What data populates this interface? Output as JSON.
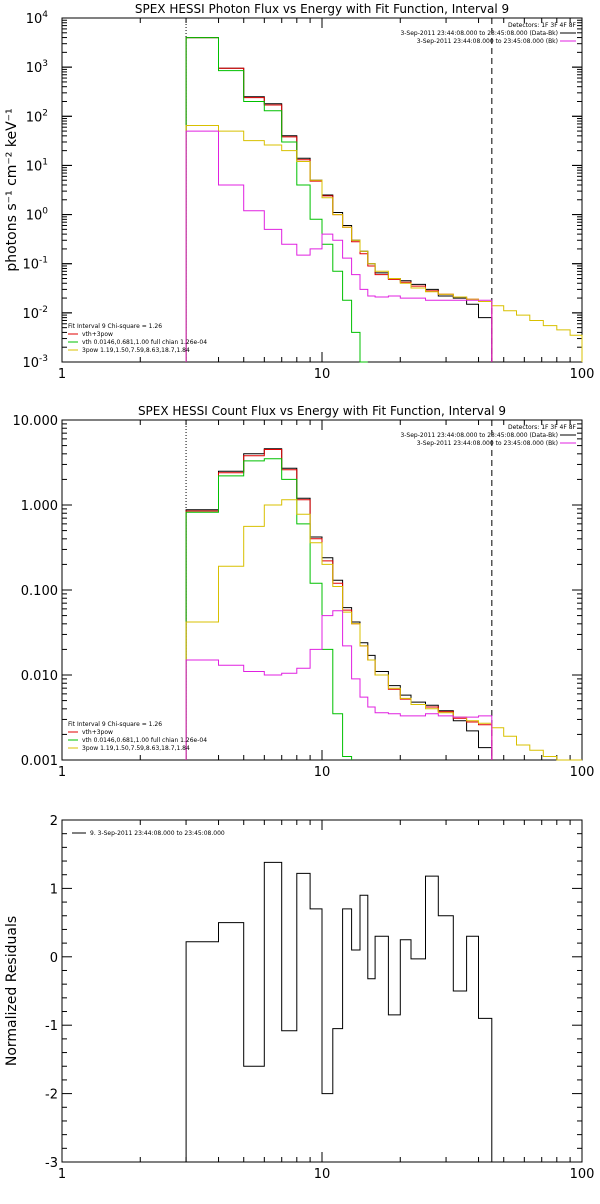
{
  "chart_data": [
    {
      "type": "line",
      "title": "SPEX HESSI Photon Flux vs Energy with Fit Function, Interval 9",
      "ylabel": "photons s⁻¹ cm⁻² keV⁻¹",
      "xlabel": "",
      "xscale": "log",
      "yscale": "log",
      "xlim": [
        1,
        100
      ],
      "ylim": [
        0.001,
        10000
      ],
      "xticks": [
        {
          "v": 1,
          "label": "1"
        },
        {
          "v": 10,
          "label": "10"
        },
        {
          "v": 100,
          "label": "100"
        }
      ],
      "yticks": [
        {
          "v": 0.001,
          "base": "10",
          "exp": "-3"
        },
        {
          "v": 0.01,
          "base": "10",
          "exp": "-2"
        },
        {
          "v": 0.1,
          "base": "10",
          "exp": "-1"
        },
        {
          "v": 1,
          "base": "10",
          "exp": "0"
        },
        {
          "v": 10,
          "base": "10",
          "exp": "1"
        },
        {
          "v": 100,
          "base": "10",
          "exp": "2"
        },
        {
          "v": 1000,
          "base": "10",
          "exp": "3"
        },
        {
          "v": 10000,
          "base": "10",
          "exp": "4"
        }
      ],
      "legend_right": [
        {
          "text": "Detectors: 1F 3F 4F 8F",
          "color": "#000000",
          "line": false
        },
        {
          "text": "3-Sep-2011 23:44:08.000 to 23:45:08.000 (Data-Bk)",
          "color": "#000000",
          "line": true
        },
        {
          "text": "3-Sep-2011 23:44:08.000 to 23:45:08.000 (Bk)",
          "color": "#e020e0",
          "line": true
        }
      ],
      "legend_left": [
        {
          "text": "Fit Interval  9    Chi-square = 1.26",
          "color": "#000000",
          "line": false
        },
        {
          "text": "vth+3pow",
          "color": "#e00000",
          "line": true
        },
        {
          "text": "vth 0.0146,0.681,1.00  full chian 1.26e-04",
          "color": "#00c000",
          "line": true
        },
        {
          "text": "3pow 1.19,1.50,7.59,8.63,18.7,1.84",
          "color": "#d8c000",
          "line": true
        }
      ],
      "vlines": [
        {
          "x": 3,
          "style": "dotted"
        },
        {
          "x": 45,
          "style": "dashed"
        }
      ],
      "series": [
        {
          "color": "#000000",
          "edges": [
            3,
            4,
            5,
            6,
            7,
            8,
            9,
            10,
            11,
            12,
            13,
            14,
            15,
            16,
            18,
            20,
            22,
            25,
            28,
            32,
            36,
            40,
            45
          ],
          "values": [
            4000,
            950,
            250,
            180,
            40,
            14,
            5,
            2.5,
            1.1,
            0.6,
            0.3,
            0.18,
            0.1,
            0.065,
            0.05,
            0.045,
            0.038,
            0.03,
            0.022,
            0.02,
            0.015,
            0.008
          ]
        },
        {
          "color": "#e00000",
          "edges": [
            3,
            4,
            5,
            6,
            7,
            8,
            9,
            10,
            11,
            12,
            13,
            14,
            15,
            16,
            18,
            20,
            22,
            25,
            28,
            32,
            36,
            40,
            45
          ],
          "values": [
            4000,
            950,
            240,
            170,
            38,
            13,
            4.8,
            2.4,
            1.0,
            0.55,
            0.28,
            0.16,
            0.09,
            0.06,
            0.048,
            0.042,
            0.035,
            0.028,
            0.024,
            0.021,
            0.019,
            0.017
          ]
        },
        {
          "color": "#00c000",
          "edges": [
            3,
            4,
            5,
            6,
            7,
            8,
            9,
            10,
            11,
            12,
            13,
            14,
            15
          ],
          "values": [
            4000,
            850,
            200,
            130,
            30,
            4,
            0.8,
            0.25,
            0.07,
            0.018,
            0.004,
            0.0005
          ]
        },
        {
          "color": "#d8c000",
          "edges": [
            3,
            4,
            5,
            6,
            7,
            8,
            9,
            10,
            11,
            12,
            13,
            14,
            15,
            16,
            18,
            20,
            22,
            25,
            28,
            32,
            36,
            40,
            45,
            50,
            56,
            63,
            71,
            80,
            90,
            100
          ],
          "values": [
            65,
            50,
            32,
            26,
            20,
            12,
            5,
            2.2,
            1.0,
            0.55,
            0.3,
            0.18,
            0.1,
            0.07,
            0.05,
            0.04,
            0.032,
            0.027,
            0.024,
            0.021,
            0.019,
            0.017,
            0.014,
            0.011,
            0.009,
            0.007,
            0.0055,
            0.0045,
            0.0035
          ]
        },
        {
          "color": "#e020e0",
          "edges": [
            3,
            4,
            5,
            6,
            7,
            8,
            9,
            10,
            11,
            12,
            13,
            14,
            15,
            16,
            18,
            20,
            22,
            25,
            28,
            32,
            36,
            40,
            45
          ],
          "values": [
            50,
            4,
            1.2,
            0.5,
            0.25,
            0.15,
            0.2,
            0.4,
            0.3,
            0.13,
            0.06,
            0.03,
            0.022,
            0.021,
            0.022,
            0.02,
            0.02,
            0.018,
            0.018,
            0.018,
            0.018,
            0.018
          ]
        }
      ]
    },
    {
      "type": "line",
      "title": "SPEX HESSI Count Flux vs Energy with Fit Function, Interval 9",
      "ylabel": "",
      "xlabel": "",
      "xscale": "log",
      "yscale": "log",
      "xlim": [
        1,
        100
      ],
      "ylim": [
        0.001,
        10
      ],
      "xticks": [
        {
          "v": 1,
          "label": "1"
        },
        {
          "v": 10,
          "label": "10"
        },
        {
          "v": 100,
          "label": "100"
        }
      ],
      "yticks": [
        {
          "v": 0.001,
          "label": "0.001"
        },
        {
          "v": 0.01,
          "label": "0.010"
        },
        {
          "v": 0.1,
          "label": "0.100"
        },
        {
          "v": 1,
          "label": "1.000"
        },
        {
          "v": 10,
          "label": "10.000"
        }
      ],
      "legend_right": [
        {
          "text": "Detectors: 1F 3F 4F 8F",
          "color": "#000000",
          "line": false
        },
        {
          "text": "3-Sep-2011 23:44:08.000 to 23:45:08.000 (Data-Bk)",
          "color": "#000000",
          "line": true
        },
        {
          "text": "3-Sep-2011 23:44:08.000 to 23:45:08.000 (Bk)",
          "color": "#e020e0",
          "line": true
        }
      ],
      "legend_left": [
        {
          "text": "Fit Interval  9    Chi-square = 1.26",
          "color": "#000000",
          "line": false
        },
        {
          "text": "vth+3pow",
          "color": "#e00000",
          "line": true
        },
        {
          "text": "vth 0.0146,0.681,1.00  full chian 1.26e-04",
          "color": "#00c000",
          "line": true
        },
        {
          "text": "3pow 1.19,1.50,7.59,8.63,18.7,1.84",
          "color": "#d8c000",
          "line": true
        }
      ],
      "vlines": [
        {
          "x": 3,
          "style": "dotted"
        },
        {
          "x": 45,
          "style": "dashed"
        }
      ],
      "series": [
        {
          "color": "#000000",
          "edges": [
            3,
            4,
            5,
            6,
            7,
            8,
            9,
            10,
            11,
            12,
            13,
            14,
            15,
            16,
            18,
            20,
            22,
            25,
            28,
            32,
            36,
            40,
            45
          ],
          "values": [
            0.88,
            2.5,
            4.0,
            4.6,
            2.7,
            1.2,
            0.42,
            0.24,
            0.13,
            0.062,
            0.042,
            0.024,
            0.017,
            0.011,
            0.0075,
            0.0058,
            0.0048,
            0.0044,
            0.0038,
            0.0029,
            0.0022,
            0.0014
          ]
        },
        {
          "color": "#e00000",
          "edges": [
            3,
            4,
            5,
            6,
            7,
            8,
            9,
            10,
            11,
            12,
            13,
            14,
            15,
            16,
            18,
            20,
            22,
            25,
            28,
            32,
            36,
            40,
            45
          ],
          "values": [
            0.85,
            2.4,
            3.8,
            4.5,
            2.6,
            1.15,
            0.4,
            0.22,
            0.12,
            0.058,
            0.04,
            0.022,
            0.015,
            0.01,
            0.0068,
            0.0052,
            0.0045,
            0.0042,
            0.0037,
            0.0031,
            0.0028,
            0.0026
          ]
        },
        {
          "color": "#00c000",
          "edges": [
            3,
            4,
            5,
            6,
            7,
            8,
            9,
            10,
            11,
            12,
            13
          ],
          "values": [
            0.82,
            2.2,
            3.3,
            3.5,
            2.0,
            0.6,
            0.12,
            0.02,
            0.0035,
            0.0011
          ]
        },
        {
          "color": "#d8c000",
          "edges": [
            3,
            4,
            5,
            6,
            7,
            8,
            9,
            10,
            11,
            12,
            13,
            14,
            15,
            16,
            18,
            20,
            22,
            25,
            28,
            32,
            36,
            40,
            45,
            50,
            56,
            63,
            71,
            80,
            90,
            100
          ],
          "values": [
            0.042,
            0.19,
            0.56,
            1.0,
            1.15,
            0.78,
            0.36,
            0.2,
            0.11,
            0.055,
            0.04,
            0.022,
            0.015,
            0.01,
            0.007,
            0.0053,
            0.0045,
            0.004,
            0.0036,
            0.0032,
            0.0029,
            0.0027,
            0.0024,
            0.0019,
            0.0015,
            0.0013,
            0.0011,
            0.001,
            0.0009
          ]
        },
        {
          "color": "#e020e0",
          "edges": [
            3,
            4,
            5,
            6,
            7,
            8,
            9,
            10,
            11,
            12,
            13,
            14,
            15,
            16,
            18,
            20,
            22,
            25,
            28,
            32,
            36,
            40,
            45
          ],
          "values": [
            0.015,
            0.013,
            0.011,
            0.01,
            0.0105,
            0.012,
            0.02,
            0.05,
            0.057,
            0.022,
            0.009,
            0.0055,
            0.0042,
            0.0036,
            0.0035,
            0.0033,
            0.0033,
            0.0035,
            0.0033,
            0.0032,
            0.0032,
            0.0033
          ]
        }
      ]
    },
    {
      "type": "line",
      "title": "",
      "ylabel": "Normalized Residuals",
      "xlabel": "",
      "xscale": "log",
      "yscale": "linear",
      "xlim": [
        1,
        100
      ],
      "ylim": [
        -3,
        2
      ],
      "xticks": [
        {
          "v": 1,
          "label": "1"
        },
        {
          "v": 10,
          "label": "10"
        },
        {
          "v": 100,
          "label": "100"
        }
      ],
      "yticks": [
        {
          "v": -3,
          "label": "-3"
        },
        {
          "v": -2,
          "label": "-2"
        },
        {
          "v": -1,
          "label": "-1"
        },
        {
          "v": 0,
          "label": "0"
        },
        {
          "v": 1,
          "label": "1"
        },
        {
          "v": 2,
          "label": "2"
        }
      ],
      "legend_right": [],
      "legend_left": [],
      "legend_top_left": [
        {
          "text": "9.  3-Sep-2011 23:44:08.000 to 23:45:08.000",
          "color": "#000000",
          "line": true
        }
      ],
      "vlines": [],
      "series": [
        {
          "color": "#000000",
          "drop_to_floor": true,
          "edges": [
            3,
            4,
            5,
            6,
            7,
            8,
            9,
            10,
            11,
            12,
            13,
            14,
            15,
            16,
            18,
            20,
            22,
            25,
            28,
            32,
            36,
            40,
            45
          ],
          "values": [
            0.22,
            0.5,
            -1.6,
            1.38,
            -1.08,
            1.22,
            0.7,
            -2.0,
            -1.05,
            0.7,
            0.1,
            0.9,
            -0.32,
            0.3,
            -0.85,
            0.25,
            -0.03,
            1.18,
            0.6,
            -0.5,
            0.3,
            -0.9
          ]
        }
      ]
    }
  ]
}
